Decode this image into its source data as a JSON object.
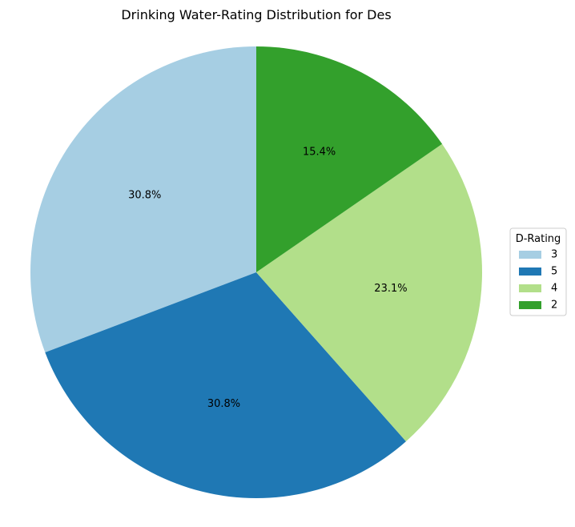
{
  "chart_data": {
    "type": "pie",
    "title": "Drinking Water-Rating Distribution for Des",
    "legend_title": "D-Rating",
    "legend_position": "right",
    "start_angle_deg": 90,
    "direction": "counterclockwise",
    "slices": [
      {
        "label": "3",
        "value": 30.8,
        "pct_label": "30.8%",
        "color": "#a6cee3"
      },
      {
        "label": "5",
        "value": 30.8,
        "pct_label": "30.8%",
        "color": "#1f78b4"
      },
      {
        "label": "4",
        "value": 23.1,
        "pct_label": "23.1%",
        "color": "#b2df8a"
      },
      {
        "label": "2",
        "value": 15.4,
        "pct_label": "15.4%",
        "color": "#33a02c"
      }
    ]
  }
}
